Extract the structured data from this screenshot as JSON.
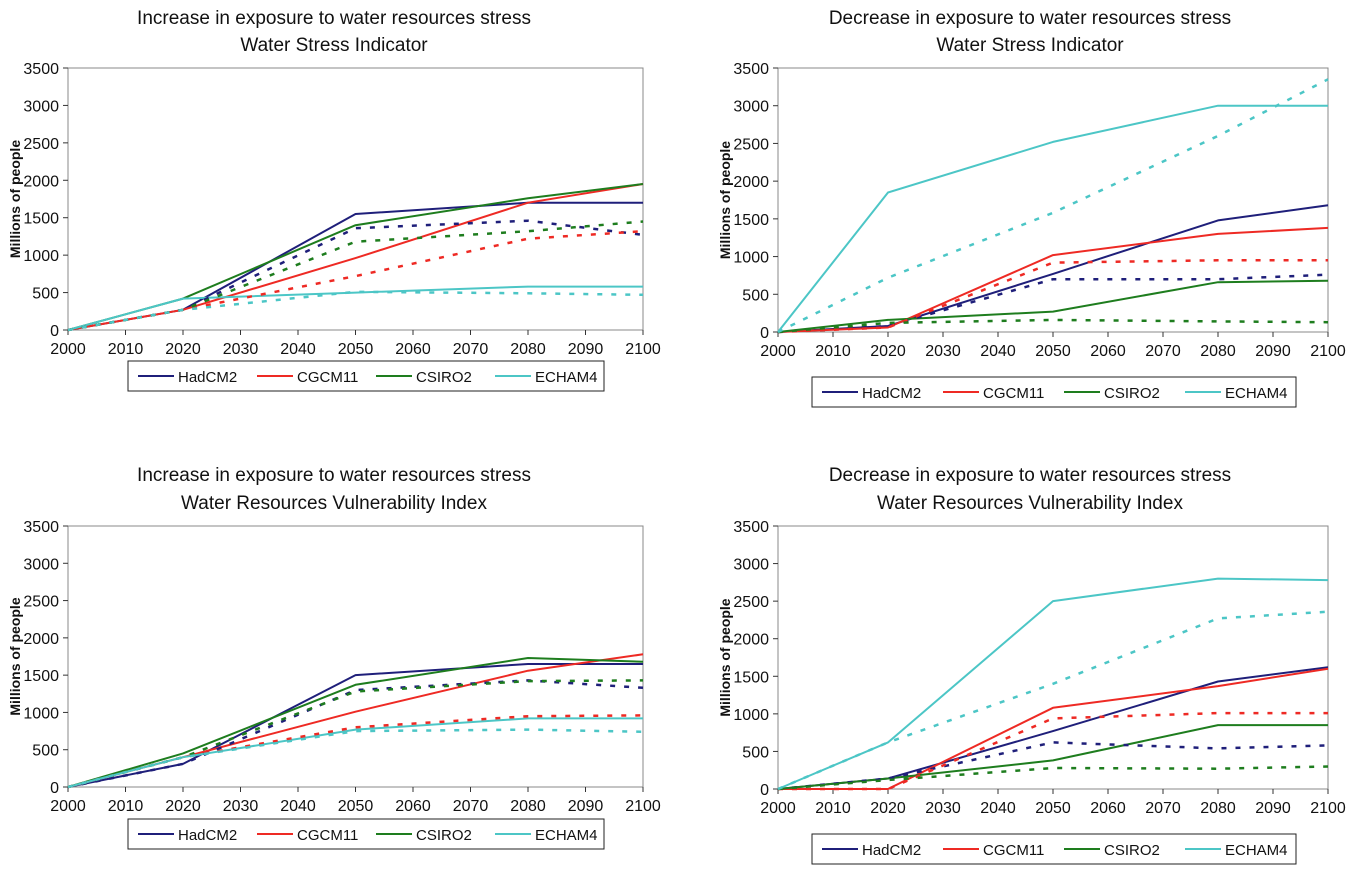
{
  "series_colors": {
    "HadCM2": "#1f1f7a",
    "CGCM11": "#ee2a24",
    "CSIRO2": "#1e7d1e",
    "ECHAM4": "#4cc6c6"
  },
  "chart_data": [
    {
      "type": "line",
      "title": "Increase in exposure to water resources stress",
      "subtitle": "Water Stress Indicator",
      "ylabel": "Millions of people",
      "xlabel": "",
      "ylim": [
        0,
        3500
      ],
      "yticks": [
        "0",
        "500",
        "1000",
        "1500",
        "2000",
        "2500",
        "3000",
        "3500"
      ],
      "xticks": [
        "2000",
        "2010",
        "2020",
        "2030",
        "2040",
        "2050",
        "2060",
        "2070",
        "2080",
        "2090",
        "2100"
      ],
      "legend": [
        "HadCM2",
        "CGCM11",
        "CSIRO2",
        "ECHAM4"
      ],
      "legend_placement": "bottom",
      "grid": false,
      "series": [
        {
          "name": "HadCM2",
          "style": "solid",
          "x": [
            2000,
            2020,
            2050,
            2080,
            2100
          ],
          "values": [
            0,
            270,
            1550,
            1700,
            1700
          ]
        },
        {
          "name": "CGCM11",
          "style": "solid",
          "x": [
            2000,
            2020,
            2050,
            2080,
            2100
          ],
          "values": [
            0,
            270,
            960,
            1700,
            1950
          ]
        },
        {
          "name": "CSIRO2",
          "style": "solid",
          "x": [
            2000,
            2020,
            2050,
            2080,
            2100
          ],
          "values": [
            0,
            420,
            1400,
            1760,
            1950
          ]
        },
        {
          "name": "ECHAM4",
          "style": "solid",
          "x": [
            2000,
            2020,
            2050,
            2080,
            2100
          ],
          "values": [
            0,
            420,
            500,
            580,
            580
          ]
        },
        {
          "name": "HadCM2",
          "style": "dashed",
          "x": [
            2000,
            2020,
            2050,
            2080,
            2100
          ],
          "values": [
            0,
            270,
            1360,
            1460,
            1270
          ]
        },
        {
          "name": "CGCM11",
          "style": "dashed",
          "x": [
            2000,
            2020,
            2050,
            2080,
            2100
          ],
          "values": [
            0,
            270,
            720,
            1220,
            1320
          ]
        },
        {
          "name": "CSIRO2",
          "style": "dashed",
          "x": [
            2000,
            2020,
            2050,
            2080,
            2100
          ],
          "values": [
            0,
            270,
            1180,
            1320,
            1450
          ]
        },
        {
          "name": "ECHAM4",
          "style": "dashed",
          "x": [
            2000,
            2020,
            2050,
            2080,
            2100
          ],
          "values": [
            0,
            270,
            510,
            490,
            470
          ]
        }
      ]
    },
    {
      "type": "line",
      "title": "Decrease in exposure to water resources stress",
      "subtitle": "Water Stress Indicator",
      "ylabel": "Millions of people",
      "xlabel": "",
      "ylim": [
        0,
        3500
      ],
      "yticks": [
        "0",
        "500",
        "1000",
        "1500",
        "2000",
        "2500",
        "3000",
        "3500"
      ],
      "xticks": [
        "2000",
        "2010",
        "2020",
        "2030",
        "2040",
        "2050",
        "2060",
        "2070",
        "2080",
        "2090",
        "2100"
      ],
      "legend": [
        "HadCM2",
        "CGCM11",
        "CSIRO2",
        "ECHAM4"
      ],
      "legend_placement": "bottom",
      "grid": false,
      "series": [
        {
          "name": "HadCM2",
          "style": "solid",
          "x": [
            2000,
            2020,
            2050,
            2080,
            2100
          ],
          "values": [
            0,
            80,
            770,
            1480,
            1680
          ]
        },
        {
          "name": "CGCM11",
          "style": "solid",
          "x": [
            2000,
            2020,
            2050,
            2080,
            2100
          ],
          "values": [
            0,
            60,
            1020,
            1300,
            1380
          ]
        },
        {
          "name": "CSIRO2",
          "style": "solid",
          "x": [
            2000,
            2020,
            2050,
            2080,
            2100
          ],
          "values": [
            0,
            160,
            270,
            660,
            680
          ]
        },
        {
          "name": "ECHAM4",
          "style": "solid",
          "x": [
            2000,
            2020,
            2050,
            2080,
            2100
          ],
          "values": [
            0,
            1850,
            2520,
            3000,
            3000
          ]
        },
        {
          "name": "HadCM2",
          "style": "dashed",
          "x": [
            2000,
            2020,
            2050,
            2080,
            2100
          ],
          "values": [
            0,
            80,
            700,
            700,
            760
          ]
        },
        {
          "name": "CGCM11",
          "style": "dashed",
          "x": [
            2000,
            2020,
            2050,
            2080,
            2100
          ],
          "values": [
            0,
            60,
            920,
            950,
            950
          ]
        },
        {
          "name": "CSIRO2",
          "style": "dashed",
          "x": [
            2000,
            2020,
            2050,
            2080,
            2100
          ],
          "values": [
            0,
            120,
            160,
            140,
            130
          ]
        },
        {
          "name": "ECHAM4",
          "style": "dashed",
          "x": [
            2000,
            2020,
            2050,
            2080,
            2100
          ],
          "values": [
            0,
            720,
            1580,
            2600,
            3350
          ]
        }
      ]
    },
    {
      "type": "line",
      "title": "Increase in exposure to water resources stress",
      "subtitle": "Water Resources Vulnerability Index",
      "ylabel": "Millions of people",
      "xlabel": "",
      "ylim": [
        0,
        3500
      ],
      "yticks": [
        "0",
        "500",
        "1000",
        "1500",
        "2000",
        "2500",
        "3000",
        "3500"
      ],
      "xticks": [
        "2000",
        "2010",
        "2020",
        "2030",
        "2040",
        "2050",
        "2060",
        "2070",
        "2080",
        "2090",
        "2100"
      ],
      "legend": [
        "HadCM2",
        "CGCM11",
        "CSIRO2",
        "ECHAM4"
      ],
      "legend_placement": "bottom",
      "grid": false,
      "series": [
        {
          "name": "HadCM2",
          "style": "solid",
          "x": [
            2000,
            2020,
            2050,
            2080,
            2100
          ],
          "values": [
            0,
            310,
            1500,
            1650,
            1650
          ]
        },
        {
          "name": "CGCM11",
          "style": "solid",
          "x": [
            2000,
            2020,
            2050,
            2080,
            2100
          ],
          "values": [
            0,
            400,
            1010,
            1560,
            1780
          ]
        },
        {
          "name": "CSIRO2",
          "style": "solid",
          "x": [
            2000,
            2020,
            2050,
            2080,
            2100
          ],
          "values": [
            0,
            450,
            1370,
            1730,
            1680
          ]
        },
        {
          "name": "ECHAM4",
          "style": "solid",
          "x": [
            2000,
            2020,
            2050,
            2080,
            2100
          ],
          "values": [
            0,
            400,
            770,
            920,
            920
          ]
        },
        {
          "name": "HadCM2",
          "style": "dashed",
          "x": [
            2000,
            2020,
            2050,
            2080,
            2100
          ],
          "values": [
            0,
            310,
            1300,
            1430,
            1330
          ]
        },
        {
          "name": "CGCM11",
          "style": "dashed",
          "x": [
            2000,
            2020,
            2050,
            2080,
            2100
          ],
          "values": [
            0,
            400,
            800,
            950,
            960
          ]
        },
        {
          "name": "CSIRO2",
          "style": "dashed",
          "x": [
            2000,
            2020,
            2050,
            2080,
            2100
          ],
          "values": [
            0,
            400,
            1280,
            1420,
            1430
          ]
        },
        {
          "name": "ECHAM4",
          "style": "dashed",
          "x": [
            2000,
            2020,
            2050,
            2080,
            2100
          ],
          "values": [
            0,
            400,
            750,
            770,
            740
          ]
        }
      ]
    },
    {
      "type": "line",
      "title": "Decrease in exposure to water resources stress",
      "subtitle": "Water Resources Vulnerability Index",
      "ylabel": "Millions of people",
      "xlabel": "",
      "ylim": [
        0,
        3500
      ],
      "yticks": [
        "0",
        "500",
        "1000",
        "1500",
        "2000",
        "2500",
        "3000",
        "3500"
      ],
      "xticks": [
        "2000",
        "2010",
        "2020",
        "2030",
        "2040",
        "2050",
        "2060",
        "2070",
        "2080",
        "2090",
        "2100"
      ],
      "legend": [
        "HadCM2",
        "CGCM11",
        "CSIRO2",
        "ECHAM4"
      ],
      "legend_placement": "bottom",
      "grid": false,
      "series": [
        {
          "name": "HadCM2",
          "style": "solid",
          "x": [
            2000,
            2020,
            2050,
            2080,
            2100
          ],
          "values": [
            0,
            140,
            770,
            1430,
            1620
          ]
        },
        {
          "name": "CGCM11",
          "style": "solid",
          "x": [
            2000,
            2020,
            2050,
            2080,
            2100
          ],
          "values": [
            0,
            0,
            1080,
            1370,
            1600
          ]
        },
        {
          "name": "CSIRO2",
          "style": "solid",
          "x": [
            2000,
            2020,
            2050,
            2080,
            2100
          ],
          "values": [
            0,
            140,
            380,
            850,
            850
          ]
        },
        {
          "name": "ECHAM4",
          "style": "solid",
          "x": [
            2000,
            2020,
            2050,
            2080,
            2100
          ],
          "values": [
            0,
            620,
            2500,
            2800,
            2780
          ]
        },
        {
          "name": "HadCM2",
          "style": "dashed",
          "x": [
            2000,
            2020,
            2050,
            2080,
            2100
          ],
          "values": [
            0,
            140,
            620,
            540,
            580
          ]
        },
        {
          "name": "CGCM11",
          "style": "dashed",
          "x": [
            2000,
            2020,
            2050,
            2080,
            2100
          ],
          "values": [
            0,
            0,
            940,
            1010,
            1010
          ]
        },
        {
          "name": "CSIRO2",
          "style": "dashed",
          "x": [
            2000,
            2020,
            2050,
            2080,
            2100
          ],
          "values": [
            0,
            120,
            280,
            270,
            300
          ]
        },
        {
          "name": "ECHAM4",
          "style": "dashed",
          "x": [
            2000,
            2020,
            2050,
            2080,
            2100
          ],
          "values": [
            0,
            620,
            1400,
            2270,
            2360
          ]
        }
      ]
    }
  ]
}
